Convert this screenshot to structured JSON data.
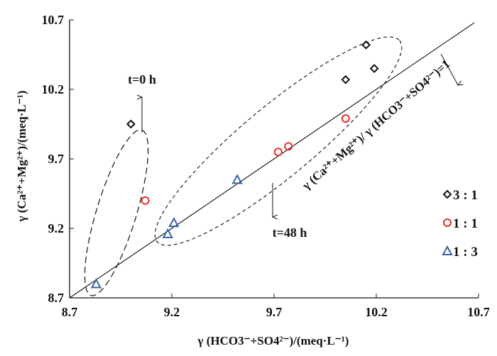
{
  "chart_data": {
    "type": "scatter",
    "xlabel": "γ (HCO3⁻+SO4²⁻)/(meq·L⁻¹)",
    "ylabel": "γ (Ca²⁺+Mg²⁺)/(meq·L⁻¹)",
    "xlim": [
      8.7,
      10.7
    ],
    "ylim": [
      8.7,
      10.7
    ],
    "xticks": [
      "8.7",
      "9.2",
      "9.7",
      "10.2",
      "10.7"
    ],
    "yticks": [
      "8.7",
      "9.2",
      "9.7",
      "10.2",
      "10.7"
    ],
    "grid": false,
    "legend_position": "right",
    "series": [
      {
        "name": "3 : 1",
        "marker": "diamond",
        "color": "#111111",
        "points": [
          [
            9.0,
            9.95
          ],
          [
            10.05,
            10.27
          ],
          [
            10.15,
            10.52
          ],
          [
            10.19,
            10.35
          ]
        ]
      },
      {
        "name": "1 : 1",
        "marker": "circle",
        "color": "#e8302a",
        "points": [
          [
            9.07,
            9.4
          ],
          [
            9.72,
            9.75
          ],
          [
            9.77,
            9.79
          ],
          [
            10.05,
            9.99
          ]
        ]
      },
      {
        "name": "1 : 3",
        "marker": "triangle",
        "color": "#3b62a8",
        "points": [
          [
            8.83,
            8.8
          ],
          [
            9.18,
            9.16
          ],
          [
            9.21,
            9.24
          ],
          [
            9.52,
            9.55
          ]
        ]
      }
    ],
    "reference_line": {
      "label": "γ (Ca²⁺+Mg²⁺)/ γ (HCO3⁻+SO4²⁻)=1",
      "slope": 1,
      "intercept": 0
    },
    "annotations": [
      "t=0 h",
      "t=48 h"
    ]
  }
}
